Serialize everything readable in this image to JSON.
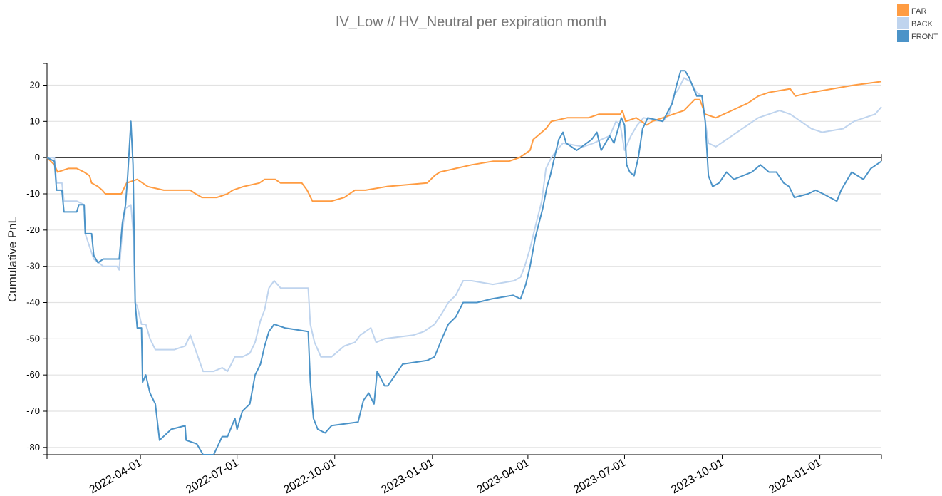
{
  "chart_data": {
    "type": "line",
    "title": "IV_Low // HV_Neutral per expiration month",
    "xlabel": "",
    "ylabel": "Cumulative PnL",
    "x_unit": "days since start_date",
    "start_date": "2022-01-03",
    "xlim_days": [
      0,
      786
    ],
    "ylim": [
      -82,
      26
    ],
    "yticks": [
      20,
      10,
      0,
      -10,
      -20,
      -30,
      -40,
      -50,
      -60,
      -70,
      -80
    ],
    "xticks": [
      "2022-04-01",
      "2022-07-01",
      "2022-10-01",
      "2023-01-01",
      "2023-04-01",
      "2023-07-01",
      "2023-10-01",
      "2024-01-01"
    ],
    "grid": true,
    "legend_position": "top-right",
    "colors": {
      "FAR": "#ff9c42",
      "BACK": "#bfd4ee",
      "FRONT": "#4b93c8"
    },
    "series": [
      {
        "name": "BACK",
        "points": [
          [
            0,
            0
          ],
          [
            7,
            0
          ],
          [
            9,
            -7
          ],
          [
            14,
            -7
          ],
          [
            16,
            -12
          ],
          [
            28,
            -12
          ],
          [
            35,
            -13
          ],
          [
            36,
            -21
          ],
          [
            44,
            -28
          ],
          [
            53,
            -30
          ],
          [
            66,
            -30
          ],
          [
            68,
            -31
          ],
          [
            71,
            -20
          ],
          [
            74,
            -14
          ],
          [
            79,
            -13
          ],
          [
            81,
            -20
          ],
          [
            83,
            -40
          ],
          [
            85,
            -41
          ],
          [
            89,
            -46
          ],
          [
            93,
            -46
          ],
          [
            97,
            -50
          ],
          [
            102,
            -53
          ],
          [
            120,
            -53
          ],
          [
            130,
            -52
          ],
          [
            135,
            -49
          ],
          [
            141,
            -54
          ],
          [
            147,
            -59
          ],
          [
            157,
            -59
          ],
          [
            165,
            -58
          ],
          [
            170,
            -59
          ],
          [
            177,
            -55
          ],
          [
            184,
            -55
          ],
          [
            191,
            -54
          ],
          [
            196,
            -51
          ],
          [
            201,
            -45
          ],
          [
            205,
            -42
          ],
          [
            209,
            -36
          ],
          [
            214,
            -34
          ],
          [
            220,
            -36
          ],
          [
            246,
            -36
          ],
          [
            248,
            -46
          ],
          [
            252,
            -51
          ],
          [
            258,
            -55
          ],
          [
            268,
            -55
          ],
          [
            280,
            -52
          ],
          [
            290,
            -51
          ],
          [
            295,
            -49
          ],
          [
            300,
            -48
          ],
          [
            305,
            -47
          ],
          [
            310,
            -51
          ],
          [
            318,
            -50
          ],
          [
            345,
            -49
          ],
          [
            355,
            -48
          ],
          [
            365,
            -46
          ],
          [
            372,
            -43
          ],
          [
            378,
            -40
          ],
          [
            385,
            -38
          ],
          [
            392,
            -34
          ],
          [
            400,
            -34
          ],
          [
            420,
            -35
          ],
          [
            440,
            -34
          ],
          [
            446,
            -33
          ],
          [
            450,
            -30
          ],
          [
            455,
            -25
          ],
          [
            460,
            -19
          ],
          [
            466,
            -12
          ],
          [
            470,
            -3
          ],
          [
            475,
            0
          ],
          [
            480,
            2
          ],
          [
            486,
            4
          ],
          [
            505,
            3
          ],
          [
            515,
            4
          ],
          [
            522,
            5
          ],
          [
            530,
            6
          ],
          [
            536,
            10
          ],
          [
            540,
            9
          ],
          [
            544,
            2
          ],
          [
            550,
            6
          ],
          [
            556,
            9
          ],
          [
            562,
            11
          ],
          [
            580,
            10
          ],
          [
            586,
            12
          ],
          [
            590,
            17
          ],
          [
            595,
            19
          ],
          [
            600,
            22
          ],
          [
            606,
            21
          ],
          [
            612,
            18
          ],
          [
            617,
            17
          ],
          [
            620,
            10
          ],
          [
            623,
            4
          ],
          [
            630,
            3
          ],
          [
            640,
            5
          ],
          [
            650,
            7
          ],
          [
            660,
            9
          ],
          [
            670,
            11
          ],
          [
            680,
            12
          ],
          [
            690,
            13
          ],
          [
            700,
            12
          ],
          [
            710,
            10
          ],
          [
            720,
            8
          ],
          [
            730,
            7
          ],
          [
            750,
            8
          ],
          [
            760,
            10
          ],
          [
            770,
            11
          ],
          [
            780,
            12
          ],
          [
            786,
            14
          ]
        ]
      },
      {
        "name": "FAR",
        "points": [
          [
            0,
            0
          ],
          [
            7,
            -2
          ],
          [
            10,
            -4
          ],
          [
            20,
            -3
          ],
          [
            28,
            -3
          ],
          [
            35,
            -4
          ],
          [
            40,
            -5
          ],
          [
            42,
            -7
          ],
          [
            48,
            -8
          ],
          [
            52,
            -9
          ],
          [
            55,
            -10
          ],
          [
            70,
            -10
          ],
          [
            75,
            -7
          ],
          [
            85,
            -6
          ],
          [
            90,
            -7
          ],
          [
            95,
            -8
          ],
          [
            110,
            -9
          ],
          [
            135,
            -9
          ],
          [
            140,
            -10
          ],
          [
            146,
            -11
          ],
          [
            160,
            -11
          ],
          [
            170,
            -10
          ],
          [
            175,
            -9
          ],
          [
            185,
            -8
          ],
          [
            200,
            -7
          ],
          [
            205,
            -6
          ],
          [
            215,
            -6
          ],
          [
            220,
            -7
          ],
          [
            240,
            -7
          ],
          [
            245,
            -9
          ],
          [
            250,
            -12
          ],
          [
            268,
            -12
          ],
          [
            280,
            -11
          ],
          [
            290,
            -9
          ],
          [
            300,
            -9
          ],
          [
            320,
            -8
          ],
          [
            358,
            -7
          ],
          [
            365,
            -5
          ],
          [
            370,
            -4
          ],
          [
            385,
            -3
          ],
          [
            400,
            -2
          ],
          [
            420,
            -1
          ],
          [
            435,
            -1
          ],
          [
            445,
            0
          ],
          [
            450,
            1
          ],
          [
            455,
            2
          ],
          [
            458,
            5
          ],
          [
            462,
            6
          ],
          [
            470,
            8
          ],
          [
            475,
            10
          ],
          [
            490,
            11
          ],
          [
            510,
            11
          ],
          [
            520,
            12
          ],
          [
            540,
            12
          ],
          [
            542,
            13
          ],
          [
            545,
            10
          ],
          [
            555,
            11
          ],
          [
            565,
            9
          ],
          [
            570,
            10
          ],
          [
            580,
            11
          ],
          [
            590,
            12
          ],
          [
            600,
            13
          ],
          [
            610,
            16
          ],
          [
            615,
            16
          ],
          [
            620,
            12
          ],
          [
            630,
            11
          ],
          [
            645,
            13
          ],
          [
            660,
            15
          ],
          [
            670,
            17
          ],
          [
            680,
            18
          ],
          [
            700,
            19
          ],
          [
            705,
            17
          ],
          [
            720,
            18
          ],
          [
            740,
            19
          ],
          [
            760,
            20
          ],
          [
            786,
            21
          ]
        ]
      },
      {
        "name": "FRONT",
        "points": [
          [
            0,
            0
          ],
          [
            7,
            -1
          ],
          [
            9,
            -9
          ],
          [
            14,
            -9
          ],
          [
            16,
            -15
          ],
          [
            28,
            -15
          ],
          [
            30,
            -13
          ],
          [
            35,
            -13
          ],
          [
            36,
            -21
          ],
          [
            42,
            -21
          ],
          [
            44,
            -27
          ],
          [
            48,
            -29
          ],
          [
            53,
            -28
          ],
          [
            68,
            -28
          ],
          [
            71,
            -18
          ],
          [
            74,
            -13
          ],
          [
            76,
            -5
          ],
          [
            79,
            10
          ],
          [
            81,
            -2
          ],
          [
            83,
            -40
          ],
          [
            85,
            -47
          ],
          [
            89,
            -47
          ],
          [
            90,
            -62
          ],
          [
            93,
            -60
          ],
          [
            97,
            -65
          ],
          [
            102,
            -68
          ],
          [
            106,
            -78
          ],
          [
            117,
            -75
          ],
          [
            130,
            -74
          ],
          [
            131,
            -78
          ],
          [
            141,
            -79
          ],
          [
            147,
            -82
          ],
          [
            157,
            -82
          ],
          [
            165,
            -77
          ],
          [
            170,
            -77
          ],
          [
            177,
            -72
          ],
          [
            179,
            -75
          ],
          [
            184,
            -70
          ],
          [
            191,
            -68
          ],
          [
            196,
            -60
          ],
          [
            201,
            -57
          ],
          [
            205,
            -52
          ],
          [
            209,
            -48
          ],
          [
            214,
            -46
          ],
          [
            224,
            -47
          ],
          [
            246,
            -48
          ],
          [
            248,
            -62
          ],
          [
            251,
            -72
          ],
          [
            255,
            -75
          ],
          [
            262,
            -76
          ],
          [
            268,
            -74
          ],
          [
            293,
            -73
          ],
          [
            298,
            -67
          ],
          [
            303,
            -65
          ],
          [
            308,
            -68
          ],
          [
            311,
            -59
          ],
          [
            318,
            -63
          ],
          [
            321,
            -63
          ],
          [
            328,
            -60
          ],
          [
            335,
            -57
          ],
          [
            358,
            -56
          ],
          [
            365,
            -55
          ],
          [
            372,
            -50
          ],
          [
            378,
            -46
          ],
          [
            385,
            -44
          ],
          [
            392,
            -40
          ],
          [
            405,
            -40
          ],
          [
            419,
            -39
          ],
          [
            439,
            -38
          ],
          [
            446,
            -39
          ],
          [
            451,
            -35
          ],
          [
            455,
            -30
          ],
          [
            460,
            -22
          ],
          [
            467,
            -14
          ],
          [
            471,
            -8
          ],
          [
            474,
            -5
          ],
          [
            478,
            0
          ],
          [
            482,
            5
          ],
          [
            486,
            7
          ],
          [
            489,
            4
          ],
          [
            499,
            2
          ],
          [
            513,
            5
          ],
          [
            518,
            7
          ],
          [
            522,
            2
          ],
          [
            530,
            6
          ],
          [
            534,
            4
          ],
          [
            541,
            11
          ],
          [
            544,
            9
          ],
          [
            546,
            -2
          ],
          [
            549,
            -4
          ],
          [
            553,
            -5
          ],
          [
            557,
            0
          ],
          [
            561,
            8
          ],
          [
            566,
            11
          ],
          [
            580,
            10
          ],
          [
            589,
            15
          ],
          [
            593,
            20
          ],
          [
            597,
            24
          ],
          [
            601,
            24
          ],
          [
            605,
            22
          ],
          [
            612,
            17
          ],
          [
            617,
            17
          ],
          [
            620,
            10
          ],
          [
            623,
            -5
          ],
          [
            627,
            -8
          ],
          [
            633,
            -7
          ],
          [
            640,
            -4
          ],
          [
            647,
            -6
          ],
          [
            664,
            -4
          ],
          [
            672,
            -2
          ],
          [
            680,
            -4
          ],
          [
            687,
            -4
          ],
          [
            694,
            -7
          ],
          [
            699,
            -8
          ],
          [
            704,
            -11
          ],
          [
            717,
            -10
          ],
          [
            724,
            -9
          ],
          [
            731,
            -10
          ],
          [
            744,
            -12
          ],
          [
            748,
            -9
          ],
          [
            758,
            -4
          ],
          [
            769,
            -6
          ],
          [
            776,
            -3
          ],
          [
            786,
            -1
          ]
        ]
      }
    ]
  }
}
